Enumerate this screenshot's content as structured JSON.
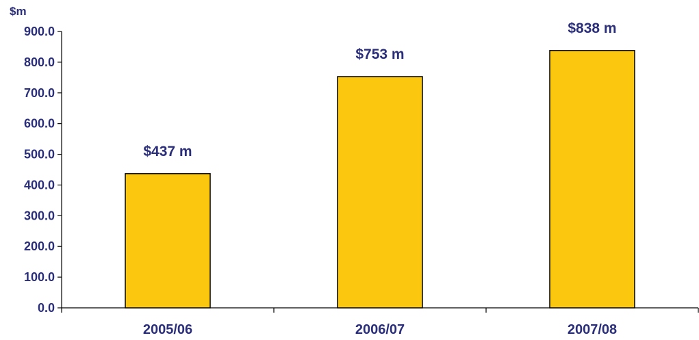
{
  "chart_data": {
    "type": "bar",
    "title": "",
    "xlabel": "",
    "ylabel": "$m",
    "categories": [
      "2005/06",
      "2006/07",
      "2007/08"
    ],
    "values": [
      437,
      753,
      838
    ],
    "data_labels": [
      "$437 m",
      "$753 m",
      "$838 m"
    ],
    "ylim": [
      0,
      900
    ],
    "yticks": [
      0,
      100,
      200,
      300,
      400,
      500,
      600,
      700,
      800,
      900
    ],
    "ytick_labels": [
      "0.0",
      "100.0",
      "200.0",
      "300.0",
      "400.0",
      "500.0",
      "600.0",
      "700.0",
      "800.0",
      "900.0"
    ],
    "grid": false,
    "legend": "none",
    "colors": {
      "bar_fill": "#fcc70f",
      "bar_stroke": "#000000",
      "text": "#2b2f7a",
      "axis": "#000000"
    }
  }
}
